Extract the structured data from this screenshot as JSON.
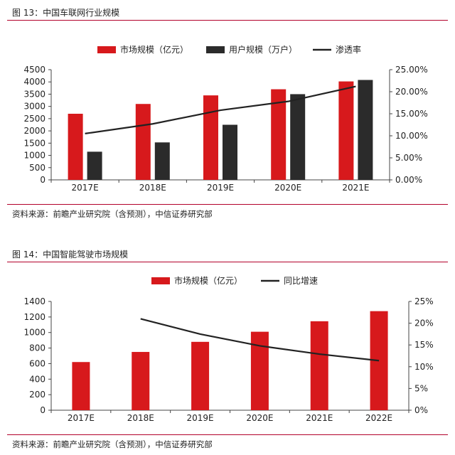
{
  "figures": [
    {
      "title": "图 13：中国车联网行业规模",
      "source": "资料来源：前瞻产业研究院（含预测），中信证券研究部"
    },
    {
      "title": "图 14：中国智能驾驶市场规模",
      "source": "资料来源：前瞻产业研究院（含预测），中信证券研究部"
    }
  ],
  "chart_data": [
    {
      "type": "bar",
      "categories": [
        "2017E",
        "2018E",
        "2019E",
        "2020E",
        "2021E"
      ],
      "series": [
        {
          "name": "市场规模（亿元）",
          "type": "bar",
          "axis": "left",
          "color": "#d7191c",
          "values": [
            2700,
            3100,
            3450,
            3700,
            4020
          ]
        },
        {
          "name": "用户规模（万户）",
          "type": "bar",
          "axis": "left",
          "color": "#2b2b2b",
          "values": [
            1150,
            1530,
            2250,
            3500,
            4080
          ]
        },
        {
          "name": "渗透率",
          "type": "line",
          "axis": "right",
          "color": "#222222",
          "values": [
            10.5,
            12.7,
            15.8,
            17.8,
            21.2
          ]
        }
      ],
      "y_left": {
        "min": 0,
        "max": 4500,
        "step": 500,
        "ticks": [
          "0",
          "500",
          "1000",
          "1500",
          "2000",
          "2500",
          "3000",
          "3500",
          "4000",
          "4500"
        ]
      },
      "y_right": {
        "min": 0,
        "max": 25,
        "step": 5,
        "ticks": [
          "0.00%",
          "5.00%",
          "10.00%",
          "15.00%",
          "20.00%",
          "25.00%"
        ]
      },
      "legend_position": "top-center",
      "grid": false
    },
    {
      "type": "bar",
      "categories": [
        "2017E",
        "2018E",
        "2019E",
        "2020E",
        "2021E",
        "2022E"
      ],
      "series": [
        {
          "name": "市场规模（亿元）",
          "type": "bar",
          "axis": "left",
          "color": "#d7191c",
          "values": [
            620,
            750,
            880,
            1010,
            1145,
            1275
          ]
        },
        {
          "name": "同比增速",
          "type": "line",
          "axis": "right",
          "color": "#222222",
          "values": [
            null,
            21.0,
            17.5,
            14.8,
            12.9,
            11.4
          ]
        }
      ],
      "y_left": {
        "min": 0,
        "max": 1400,
        "step": 200,
        "ticks": [
          "0",
          "200",
          "400",
          "600",
          "800",
          "1000",
          "1200",
          "1400"
        ]
      },
      "y_right": {
        "min": 0,
        "max": 25,
        "step": 5,
        "ticks": [
          "0%",
          "5%",
          "10%",
          "15%",
          "20%",
          "25%"
        ]
      },
      "legend_position": "top-center",
      "grid": false
    }
  ]
}
